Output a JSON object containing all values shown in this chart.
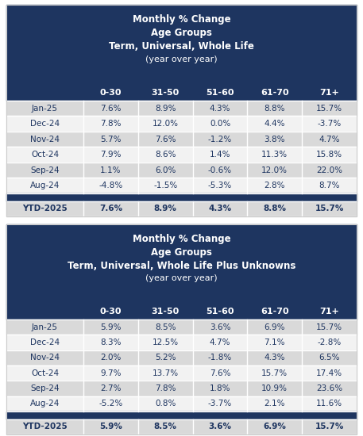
{
  "table1": {
    "title_lines": [
      "Monthly % Change",
      "Age Groups",
      "Term, Universal, Whole Life",
      "(year over year)"
    ],
    "title_bold": [
      true,
      true,
      true,
      false
    ],
    "columns": [
      "",
      "0-30",
      "31-50",
      "51-60",
      "61-70",
      "71+"
    ],
    "rows": [
      [
        "Jan-25",
        "7.6%",
        "8.9%",
        "4.3%",
        "8.8%",
        "15.7%"
      ],
      [
        "Dec-24",
        "7.8%",
        "12.0%",
        "0.0%",
        "4.4%",
        "-3.7%"
      ],
      [
        "Nov-24",
        "5.7%",
        "7.6%",
        "-1.2%",
        "3.8%",
        "4.7%"
      ],
      [
        "Oct-24",
        "7.9%",
        "8.6%",
        "1.4%",
        "11.3%",
        "15.8%"
      ],
      [
        "Sep-24",
        "1.1%",
        "6.0%",
        "-0.6%",
        "12.0%",
        "22.0%"
      ],
      [
        "Aug-24",
        "-4.8%",
        "-1.5%",
        "-5.3%",
        "2.8%",
        "8.7%"
      ]
    ],
    "ytd_row": [
      "YTD-2025",
      "7.6%",
      "8.9%",
      "4.3%",
      "8.8%",
      "15.7%"
    ]
  },
  "table2": {
    "title_lines": [
      "Monthly % Change",
      "Age Groups",
      "Term, Universal, Whole Life Plus Unknowns",
      "(year over year)"
    ],
    "title_bold": [
      true,
      true,
      true,
      false
    ],
    "columns": [
      "",
      "0-30",
      "31-50",
      "51-60",
      "61-70",
      "71+"
    ],
    "rows": [
      [
        "Jan-25",
        "5.9%",
        "8.5%",
        "3.6%",
        "6.9%",
        "15.7%"
      ],
      [
        "Dec-24",
        "8.3%",
        "12.5%",
        "4.7%",
        "7.1%",
        "-2.8%"
      ],
      [
        "Nov-24",
        "2.0%",
        "5.2%",
        "-1.8%",
        "4.3%",
        "6.5%"
      ],
      [
        "Oct-24",
        "9.7%",
        "13.7%",
        "7.6%",
        "15.7%",
        "17.4%"
      ],
      [
        "Sep-24",
        "2.7%",
        "7.8%",
        "1.8%",
        "10.9%",
        "23.6%"
      ],
      [
        "Aug-24",
        "-5.2%",
        "0.8%",
        "-3.7%",
        "2.1%",
        "11.6%"
      ]
    ],
    "ytd_row": [
      "YTD-2025",
      "5.9%",
      "8.5%",
      "3.6%",
      "6.9%",
      "15.7%"
    ]
  },
  "header_bg": "#1e3560",
  "header_text": "#ffffff",
  "col_header_bg": "#1e3560",
  "col_header_text": "#ffffff",
  "row_even_bg": "#d9d9d9",
  "row_odd_bg": "#f2f2f2",
  "ytd_bg": "#d9d9d9",
  "separator_bg": "#1e3560",
  "cell_text": "#1e3560",
  "font_size_title": 8.5,
  "font_size_col_header": 8.0,
  "font_size_cell": 7.5,
  "fig_width": 4.57,
  "fig_height": 5.5,
  "dpi": 100
}
